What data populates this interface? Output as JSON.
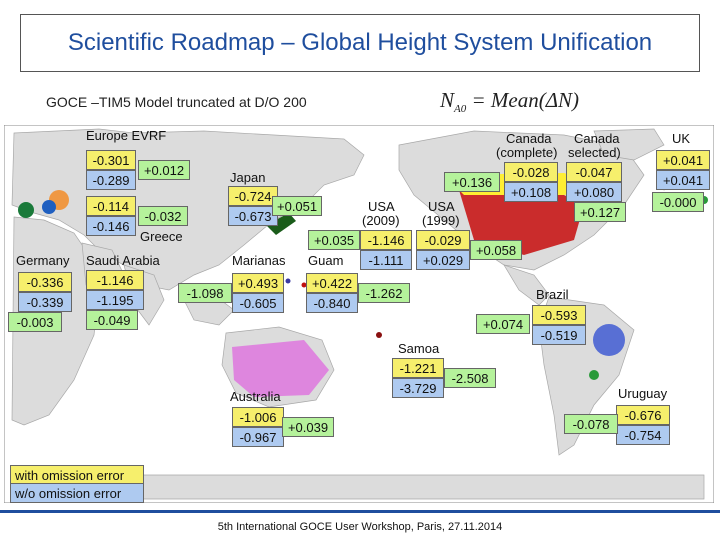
{
  "title": "Scientific Roadmap – Global Height System Unification",
  "subtitle": "GOCE –TIM5 Model truncated at D/O 200",
  "formula": {
    "lhs": "N",
    "lhs_sub": "A0",
    "eq": " = ",
    "rhs": "Mean(ΔN)"
  },
  "colors": {
    "title_blue": "#1f4e9e",
    "with_omission": "#f6ef6c",
    "wo_omission": "#aecaf0",
    "green_box": "#b5f29b"
  },
  "legend": {
    "with_omission": "with omission error",
    "wo_omission": "w/o omission error"
  },
  "labels": {
    "europe": "Europe EVRF",
    "japan": "Japan",
    "greece": "Greece",
    "germany": "Germany",
    "saudi": "Saudi Arabia",
    "marianas": "Marianas",
    "guam": "Guam",
    "usa2009_1": "USA",
    "usa2009_2": "(2009)",
    "usa1999_1": "USA",
    "usa1999_2": "(1999)",
    "canada_c1": "Canada",
    "canada_c2": "(complete)",
    "canada_s1": "Canada",
    "canada_s2": "selected)",
    "uk": "UK",
    "brazil": "Brazil",
    "samoa": "Samoa",
    "australia": "Australia",
    "uruguay": "Uruguay"
  },
  "values": {
    "europe_y": "-0.301",
    "europe_b": "-0.289",
    "europe_g": "+0.012",
    "greece_y": "-0.114",
    "greece_b": "-0.146",
    "greece_g": "-0.032",
    "japan_y": "-0.724",
    "japan_b": "-0.673",
    "japan_g": "+0.051",
    "germany_y": "-0.336",
    "germany_b": "-0.339",
    "germany_g": "-0.003",
    "saudi_y": "-1.146",
    "saudi_b": "-1.195",
    "saudi_g": "-0.049",
    "marianas_y": "+0.493",
    "marianas_b": "-0.605",
    "marianas_g": "-1.098",
    "guam_y": "+0.422",
    "guam_b": "-0.840",
    "guam_g": "-1.262",
    "usa2009_y": "-1.146",
    "usa2009_b": "-1.111",
    "usa2009_g": "+0.035",
    "usa1999_y": "-0.029",
    "usa1999_b": "+0.029",
    "usa1999_g": "+0.058",
    "canc_y": "-0.028",
    "canc_b": "+0.108",
    "canc_g": "+0.136",
    "cans_y": "-0.047",
    "cans_b": "+0.080",
    "cans_g": "+0.127",
    "uk_y": "+0.041",
    "uk_b": "+0.041",
    "uk_g": "-0.000",
    "brazil_y": "-0.593",
    "brazil_b": "-0.519",
    "brazil_g": "+0.074",
    "samoa_y": "-1.221",
    "samoa_b": "-3.729",
    "samoa_g": "-2.508",
    "australia_y": "-1.006",
    "australia_b": "-0.967",
    "australia_g": "+0.039",
    "uruguay_y": "-0.676",
    "uruguay_b": "-0.754",
    "uruguay_g": "-0.078"
  },
  "footer": "5th International GOCE User Workshop, Paris, 27.11.2014"
}
